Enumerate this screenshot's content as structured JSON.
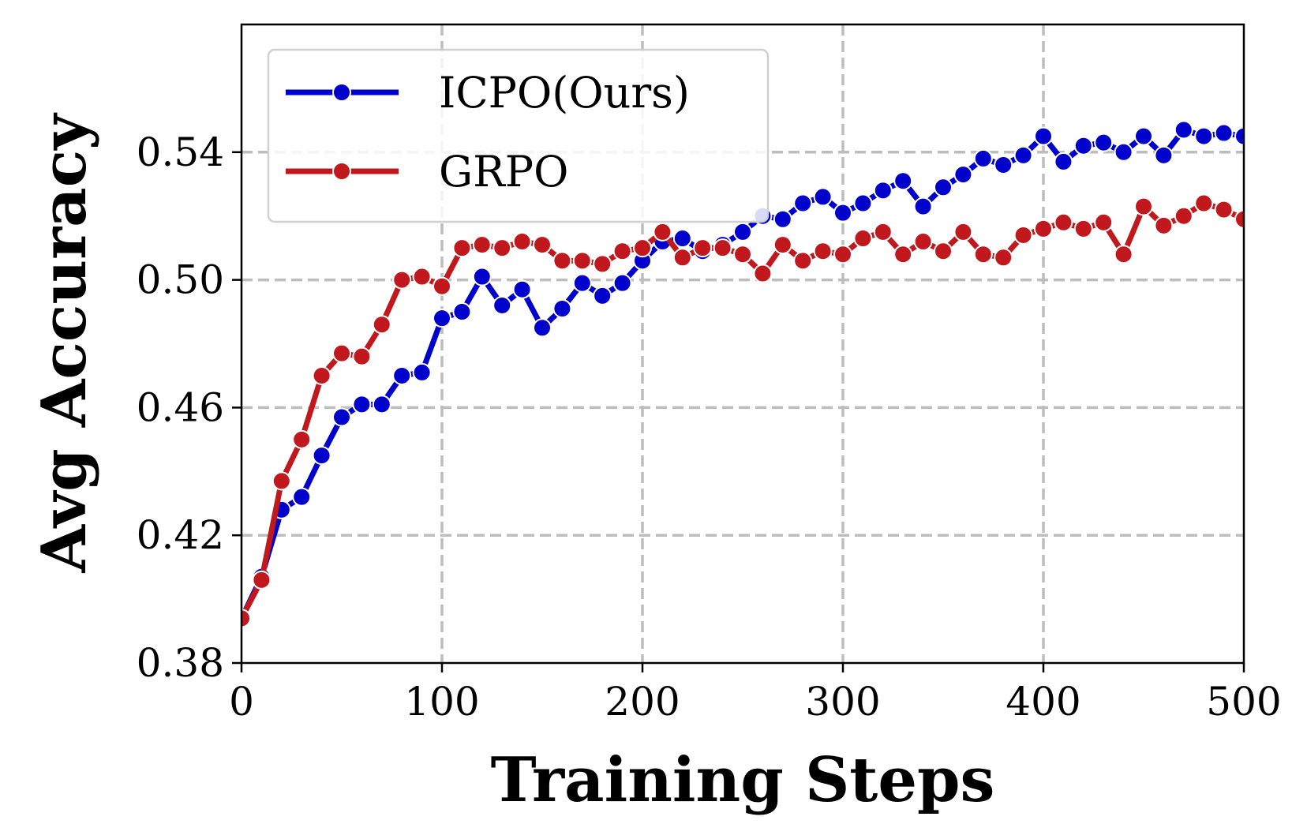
{
  "chart_data": {
    "type": "line",
    "xlabel": "Training Steps",
    "ylabel": "Avg Accuracy",
    "xlim": [
      0,
      500
    ],
    "ylim": [
      0.38,
      0.58
    ],
    "xticks": [
      0,
      100,
      200,
      300,
      400,
      500
    ],
    "yticks": [
      0.38,
      0.42,
      0.46,
      0.5,
      0.54
    ],
    "xtick_labels": [
      "0",
      "100",
      "200",
      "300",
      "400",
      "500"
    ],
    "ytick_labels": [
      "0.38",
      "0.42",
      "0.46",
      "0.50",
      "0.54"
    ],
    "grid": true,
    "legend_position": "top-left",
    "x": [
      0,
      10,
      20,
      30,
      40,
      50,
      60,
      70,
      80,
      90,
      100,
      110,
      120,
      130,
      140,
      150,
      160,
      170,
      180,
      190,
      200,
      210,
      220,
      230,
      240,
      250,
      260,
      270,
      280,
      290,
      300,
      310,
      320,
      330,
      340,
      350,
      360,
      370,
      380,
      390,
      400,
      410,
      420,
      430,
      440,
      450,
      460,
      470,
      480,
      490,
      500
    ],
    "series": [
      {
        "name": "ICPO(Ours)",
        "color": "#0000cc",
        "values": [
          0.394,
          0.407,
          0.428,
          0.432,
          0.445,
          0.457,
          0.461,
          0.461,
          0.47,
          0.471,
          0.488,
          0.49,
          0.501,
          0.492,
          0.497,
          0.485,
          0.491,
          0.499,
          0.495,
          0.499,
          0.506,
          0.512,
          0.513,
          0.509,
          0.511,
          0.515,
          0.52,
          0.519,
          0.524,
          0.526,
          0.521,
          0.524,
          0.528,
          0.531,
          0.523,
          0.529,
          0.533,
          0.538,
          0.536,
          0.539,
          0.545,
          0.537,
          0.542,
          0.543,
          0.54,
          0.545,
          0.539,
          0.547,
          0.545,
          0.546,
          0.545
        ]
      },
      {
        "name": "GRPO",
        "color": "#c0181c",
        "values": [
          0.394,
          0.406,
          0.437,
          0.45,
          0.47,
          0.477,
          0.476,
          0.486,
          0.5,
          0.501,
          0.498,
          0.51,
          0.511,
          0.51,
          0.512,
          0.511,
          0.506,
          0.506,
          0.505,
          0.509,
          0.51,
          0.515,
          0.507,
          0.51,
          0.51,
          0.508,
          0.502,
          0.511,
          0.506,
          0.509,
          0.508,
          0.513,
          0.515,
          0.508,
          0.512,
          0.509,
          0.515,
          0.508,
          0.507,
          0.514,
          0.516,
          0.518,
          0.516,
          0.518,
          0.508,
          0.523,
          0.517,
          0.52,
          0.524,
          0.522,
          0.519
        ]
      }
    ]
  }
}
